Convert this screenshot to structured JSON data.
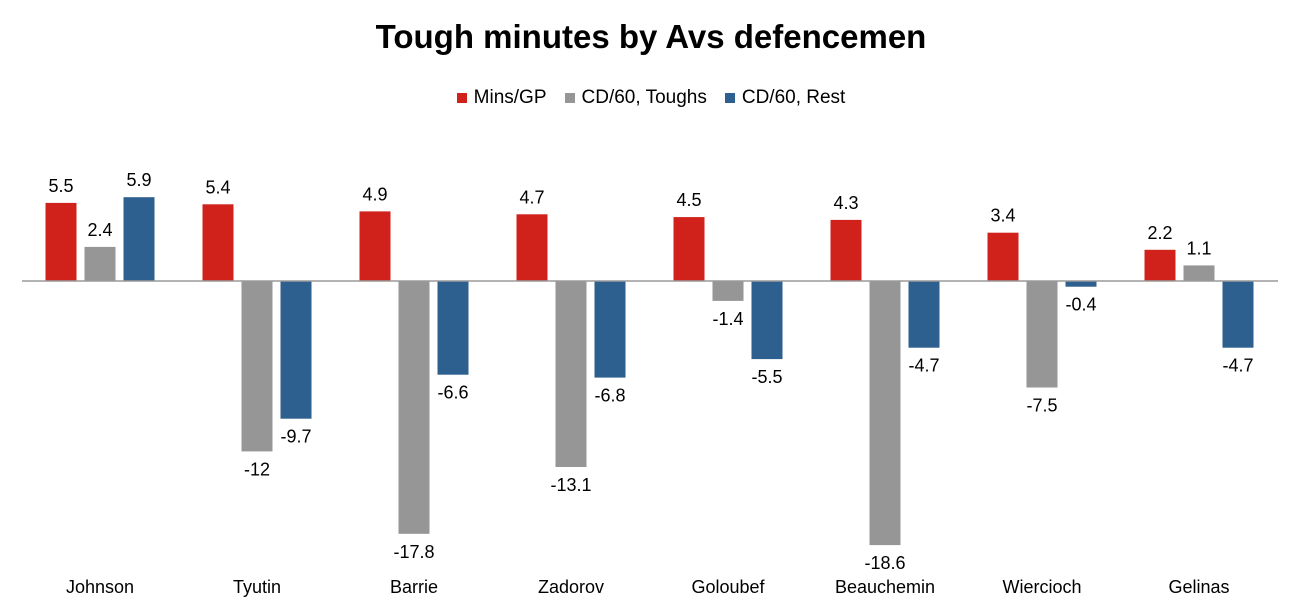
{
  "chart_data": {
    "type": "bar",
    "title": "Tough minutes by Avs defencemen",
    "categories": [
      "Johnson",
      "Tyutin",
      "Barrie",
      "Zadorov",
      "Goloubef",
      "Beauchemin",
      "Wiercioch",
      "Gelinas"
    ],
    "series": [
      {
        "name": "Mins/GP",
        "color": "#d0211b",
        "values": [
          5.5,
          5.4,
          4.9,
          4.7,
          4.5,
          4.3,
          3.4,
          2.2
        ],
        "labels": [
          "5.5",
          "5.4",
          "4.9",
          "4.7",
          "4.5",
          "4.3",
          "3.4",
          "2.2"
        ]
      },
      {
        "name": "CD/60, Toughs",
        "color": "#969696",
        "values": [
          2.4,
          -12,
          -17.8,
          -13.1,
          -1.4,
          -18.6,
          -7.5,
          1.1
        ],
        "labels": [
          "2.4",
          "-12",
          "-17.8",
          "-13.1",
          "-1.4",
          "-18.6",
          "-7.5",
          "1.1"
        ]
      },
      {
        "name": "CD/60, Rest",
        "color": "#2d5f8f",
        "values": [
          5.9,
          -9.7,
          -6.6,
          -6.8,
          -5.5,
          -4.7,
          -0.4,
          -4.7
        ],
        "labels": [
          "5.9",
          "-9.7",
          "-6.6",
          "-6.8",
          "-5.5",
          "-4.7",
          "-0.4",
          "-4.7"
        ]
      }
    ],
    "legend_position": "top-center",
    "grid": false
  }
}
